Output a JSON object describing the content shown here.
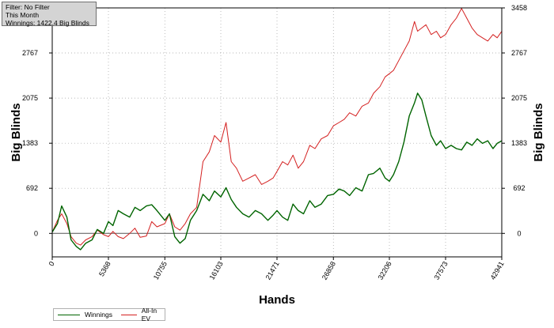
{
  "info": {
    "filter": "Filter: No Filter",
    "period": "This Month",
    "winnings": "Winnings: 1422.4 Big Blinds"
  },
  "colors": {
    "winnings": "#006400",
    "allin_ev": "#d42020",
    "zero_line": "#555555",
    "grid": "#a0a0a0"
  },
  "chart_data": {
    "type": "line",
    "xlabel": "Hands",
    "ylabel": "Big Blinds",
    "ylabel_right": "Big Blinds",
    "xlim": [
      0,
      42941
    ],
    "ylim": [
      -360,
      3458
    ],
    "x_ticks": [
      0,
      5368,
      10755,
      16103,
      21471,
      26858,
      32206,
      37573,
      42941
    ],
    "y_ticks": [
      0,
      692,
      1383,
      2075,
      2767,
      3458
    ],
    "grid": true,
    "legend_position": "bottom-left",
    "series": [
      {
        "name": "Winnings",
        "points": [
          [
            0,
            20
          ],
          [
            500,
            150
          ],
          [
            900,
            420
          ],
          [
            1400,
            250
          ],
          [
            1800,
            -100
          ],
          [
            2300,
            -200
          ],
          [
            2700,
            -250
          ],
          [
            3200,
            -150
          ],
          [
            3800,
            -100
          ],
          [
            4300,
            60
          ],
          [
            4900,
            0
          ],
          [
            5368,
            180
          ],
          [
            5800,
            120
          ],
          [
            6300,
            350
          ],
          [
            6800,
            300
          ],
          [
            7400,
            250
          ],
          [
            7900,
            400
          ],
          [
            8400,
            350
          ],
          [
            9000,
            420
          ],
          [
            9500,
            440
          ],
          [
            10000,
            350
          ],
          [
            10755,
            200
          ],
          [
            11200,
            300
          ],
          [
            11700,
            -50
          ],
          [
            12200,
            -150
          ],
          [
            12700,
            -80
          ],
          [
            13200,
            200
          ],
          [
            13800,
            350
          ],
          [
            14400,
            600
          ],
          [
            15000,
            500
          ],
          [
            15500,
            650
          ],
          [
            16103,
            560
          ],
          [
            16600,
            700
          ],
          [
            17100,
            520
          ],
          [
            17600,
            400
          ],
          [
            18200,
            300
          ],
          [
            18800,
            250
          ],
          [
            19400,
            350
          ],
          [
            20000,
            300
          ],
          [
            20600,
            200
          ],
          [
            21100,
            280
          ],
          [
            21471,
            350
          ],
          [
            22000,
            250
          ],
          [
            22500,
            200
          ],
          [
            23000,
            450
          ],
          [
            23500,
            350
          ],
          [
            24000,
            300
          ],
          [
            24600,
            500
          ],
          [
            25100,
            400
          ],
          [
            25700,
            450
          ],
          [
            26300,
            580
          ],
          [
            26858,
            600
          ],
          [
            27400,
            680
          ],
          [
            27900,
            650
          ],
          [
            28400,
            580
          ],
          [
            29000,
            700
          ],
          [
            29600,
            650
          ],
          [
            30200,
            900
          ],
          [
            30700,
            920
          ],
          [
            31300,
            1000
          ],
          [
            31800,
            850
          ],
          [
            32206,
            800
          ],
          [
            32600,
            900
          ],
          [
            33100,
            1100
          ],
          [
            33600,
            1400
          ],
          [
            34100,
            1800
          ],
          [
            34600,
            2000
          ],
          [
            34900,
            2150
          ],
          [
            35300,
            2050
          ],
          [
            35700,
            1800
          ],
          [
            36200,
            1500
          ],
          [
            36700,
            1350
          ],
          [
            37100,
            1420
          ],
          [
            37573,
            1300
          ],
          [
            38100,
            1350
          ],
          [
            38600,
            1300
          ],
          [
            39100,
            1280
          ],
          [
            39600,
            1400
          ],
          [
            40100,
            1350
          ],
          [
            40600,
            1450
          ],
          [
            41100,
            1380
          ],
          [
            41600,
            1420
          ],
          [
            42100,
            1300
          ],
          [
            42500,
            1380
          ],
          [
            42941,
            1420
          ]
        ]
      },
      {
        "name": "All-In EV",
        "points": [
          [
            0,
            20
          ],
          [
            500,
            200
          ],
          [
            900,
            300
          ],
          [
            1400,
            150
          ],
          [
            1800,
            -50
          ],
          [
            2300,
            -150
          ],
          [
            2700,
            -180
          ],
          [
            3200,
            -100
          ],
          [
            3800,
            -50
          ],
          [
            4300,
            50
          ],
          [
            4900,
            -20
          ],
          [
            5368,
            -50
          ],
          [
            5800,
            30
          ],
          [
            6300,
            -50
          ],
          [
            6800,
            -80
          ],
          [
            7400,
            0
          ],
          [
            7900,
            80
          ],
          [
            8400,
            -60
          ],
          [
            9000,
            -40
          ],
          [
            9500,
            180
          ],
          [
            10000,
            100
          ],
          [
            10755,
            150
          ],
          [
            11200,
            300
          ],
          [
            11700,
            100
          ],
          [
            12200,
            50
          ],
          [
            12700,
            150
          ],
          [
            13200,
            300
          ],
          [
            13800,
            400
          ],
          [
            14400,
            1100
          ],
          [
            15000,
            1250
          ],
          [
            15500,
            1500
          ],
          [
            16103,
            1400
          ],
          [
            16600,
            1700
          ],
          [
            17100,
            1100
          ],
          [
            17600,
            1000
          ],
          [
            18200,
            800
          ],
          [
            18800,
            850
          ],
          [
            19400,
            900
          ],
          [
            20000,
            750
          ],
          [
            20600,
            800
          ],
          [
            21100,
            850
          ],
          [
            21471,
            950
          ],
          [
            22000,
            1100
          ],
          [
            22500,
            1050
          ],
          [
            23000,
            1200
          ],
          [
            23500,
            1000
          ],
          [
            24000,
            1100
          ],
          [
            24600,
            1350
          ],
          [
            25100,
            1300
          ],
          [
            25700,
            1450
          ],
          [
            26300,
            1500
          ],
          [
            26858,
            1650
          ],
          [
            27400,
            1700
          ],
          [
            27900,
            1750
          ],
          [
            28400,
            1850
          ],
          [
            29000,
            1800
          ],
          [
            29600,
            1950
          ],
          [
            30200,
            2000
          ],
          [
            30700,
            2150
          ],
          [
            31300,
            2250
          ],
          [
            31800,
            2400
          ],
          [
            32206,
            2450
          ],
          [
            32600,
            2500
          ],
          [
            33100,
            2650
          ],
          [
            33600,
            2800
          ],
          [
            34100,
            2950
          ],
          [
            34600,
            3250
          ],
          [
            34900,
            3100
          ],
          [
            35300,
            3150
          ],
          [
            35700,
            3200
          ],
          [
            36200,
            3050
          ],
          [
            36700,
            3100
          ],
          [
            37100,
            3000
          ],
          [
            37573,
            3050
          ],
          [
            38100,
            3200
          ],
          [
            38600,
            3300
          ],
          [
            39100,
            3450
          ],
          [
            39600,
            3300
          ],
          [
            40100,
            3150
          ],
          [
            40600,
            3050
          ],
          [
            41100,
            3000
          ],
          [
            41600,
            2950
          ],
          [
            42100,
            3050
          ],
          [
            42500,
            3000
          ],
          [
            42941,
            3100
          ]
        ]
      }
    ]
  },
  "legend": {
    "winnings_label": "Winnings",
    "allin_label": "All-In EV"
  }
}
